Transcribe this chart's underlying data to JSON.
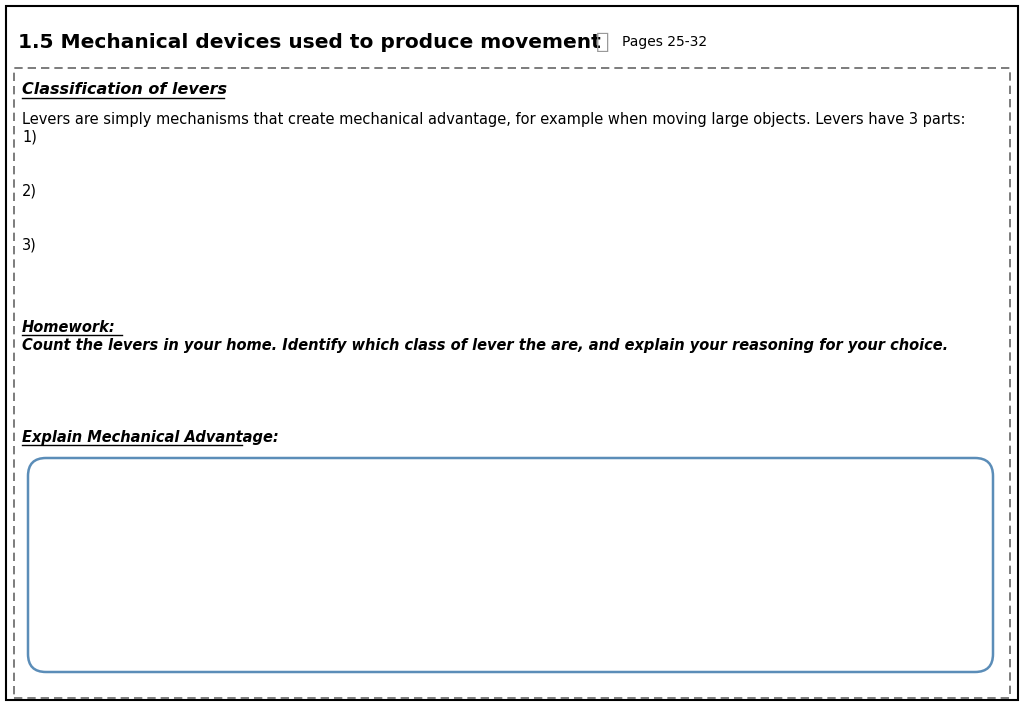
{
  "title": "1.5 Mechanical devices used to produce movement",
  "pages_text": "Pages 25-32",
  "section_heading": "Classification of levers",
  "body_text_line1": "Levers are simply mechanisms that create mechanical advantage, for example when moving large objects. Levers have 3 parts:",
  "item1": "1)",
  "item2": "2)",
  "item3": "3)",
  "homework_label": "Homework:",
  "homework_text": "Count the levers in your home. Identify which class of lever the are, and explain your reasoning for your choice.",
  "explain_label": "Explain Mechanical Advantage:",
  "bg_color": "#ffffff",
  "outer_border_color": "#000000",
  "dashed_border_color": "#666666",
  "rounded_box_color": "#5b8db8",
  "title_fontsize": 14.5,
  "body_fontsize": 10.5,
  "heading_fontsize": 11.5,
  "pages_fontsize": 10
}
